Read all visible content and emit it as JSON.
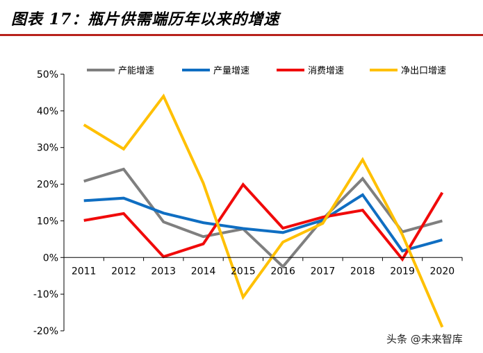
{
  "header": {
    "title": "图表 17：瓶片供需端历年以来的增速"
  },
  "watermark": {
    "text": "头条 @未来智库"
  },
  "colors": {
    "accent_rule": "#b8211b"
  },
  "chart_data": {
    "type": "line",
    "categories": [
      "2011",
      "2012",
      "2013",
      "2014",
      "2015",
      "2016",
      "2017",
      "2018",
      "2019",
      "2020"
    ],
    "ylim": [
      -20,
      50
    ],
    "yticks": [
      -20,
      -10,
      0,
      10,
      20,
      30,
      40,
      50
    ],
    "ytick_labels": [
      "-20%",
      "-10%",
      "0%",
      "10%",
      "20%",
      "30%",
      "40%",
      "50%"
    ],
    "legend_position": "top",
    "series": [
      {
        "name": "产能增速",
        "color": "#7f7f7f",
        "values": [
          20.8,
          24.1,
          9.7,
          5.7,
          7.8,
          -2.5,
          10.5,
          21.5,
          7.0,
          10.0
        ]
      },
      {
        "name": "产量增速",
        "color": "#0f6ec2",
        "values": [
          15.5,
          16.2,
          12.1,
          9.5,
          7.9,
          6.8,
          10.2,
          17.1,
          1.8,
          4.8
        ]
      },
      {
        "name": "消费增速",
        "color": "#f00a0a",
        "values": [
          10.1,
          12.0,
          0.2,
          3.7,
          19.9,
          8.0,
          11.0,
          12.9,
          -0.5,
          17.7
        ]
      },
      {
        "name": "净出口增速",
        "color": "#ffc000",
        "values": [
          36.2,
          29.6,
          44.0,
          20.3,
          -10.8,
          4.2,
          9.3,
          26.7,
          6.2,
          -19.0
        ]
      }
    ]
  }
}
